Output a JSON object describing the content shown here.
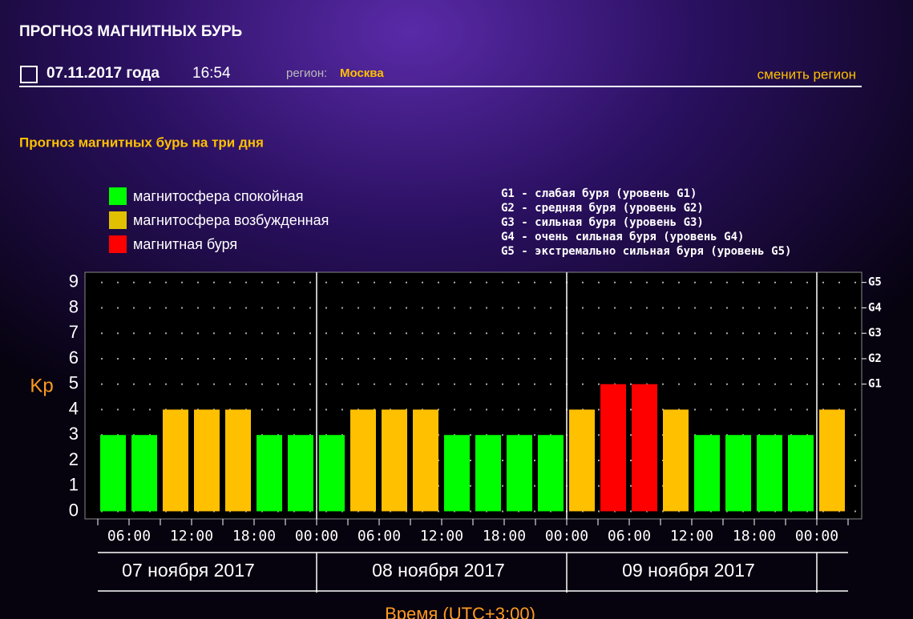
{
  "header": {
    "title": "ПРОГНОЗ МАГНИТНЫХ БУРЬ",
    "date": "07.11.2017 года",
    "time": "16:54",
    "region_label": "регион:",
    "region": "Москва",
    "change_region": "сменить регион"
  },
  "subtitle": "Прогноз магнитных бурь на три дня",
  "chart_data": {
    "type": "bar",
    "legend": [
      {
        "name": "магнитосфера спокойная",
        "color": "#00ff00"
      },
      {
        "name": "магнитосфера возбужденная",
        "color": "#e0c000"
      },
      {
        "name": "магнитная буря",
        "color": "#ff0000"
      }
    ],
    "notes": [
      "G1 - слабая буря (уровень G1)",
      "G2 - средняя буря (уровень G2)",
      "G3 - сильная буря (уровень G3)",
      "G4 - очень сильная буря (уровень G4)",
      "G5 - экстремально сильная буря (уровень G5)"
    ],
    "ylabel": "Kp",
    "xlabel": "Время (UTC+3:00)",
    "categories": [
      null,
      null,
      null,
      null,
      null,
      null,
      null,
      null,
      null,
      null,
      null,
      null,
      null,
      null,
      null,
      null,
      null,
      null,
      null,
      null,
      null,
      null,
      null,
      null
    ],
    "values": [
      3,
      3,
      4,
      4,
      4,
      3,
      3,
      3,
      4,
      4,
      4,
      3,
      3,
      3,
      3,
      4,
      5,
      5,
      4,
      3,
      3,
      3,
      3,
      4
    ],
    "colors": [
      "#00ff00",
      "#00ff00",
      "#ffc000",
      "#ffc000",
      "#ffc000",
      "#00ff00",
      "#00ff00",
      "#00ff00",
      "#ffc000",
      "#ffc000",
      "#ffc000",
      "#00ff00",
      "#00ff00",
      "#00ff00",
      "#00ff00",
      "#ffc000",
      "#ff0000",
      "#ff0000",
      "#ffc000",
      "#00ff00",
      "#00ff00",
      "#00ff00",
      "#00ff00",
      "#ffc000"
    ],
    "ylim": [
      -0.3,
      9.4
    ],
    "yticks": [
      0,
      1,
      2,
      3,
      4,
      5,
      6,
      7,
      8,
      9
    ],
    "y2lim": [
      -0.3,
      9.4
    ],
    "y2ticks": [
      {
        "value": 5,
        "label": "G1"
      },
      {
        "value": 6,
        "label": "G2"
      },
      {
        "value": 7,
        "label": "G3"
      },
      {
        "value": 8,
        "label": "G4"
      },
      {
        "value": 9,
        "label": "G5"
      }
    ],
    "xtick_labels": [
      "06:00",
      "12:00",
      "18:00",
      "00:00",
      "06:00",
      "12:00",
      "18:00",
      "00:00",
      "06:00",
      "12:00",
      "18:00",
      "00:00"
    ],
    "days": [
      "07 ноября 2017",
      "08 ноября 2017",
      "09 ноября 2017"
    ],
    "grid": true
  }
}
